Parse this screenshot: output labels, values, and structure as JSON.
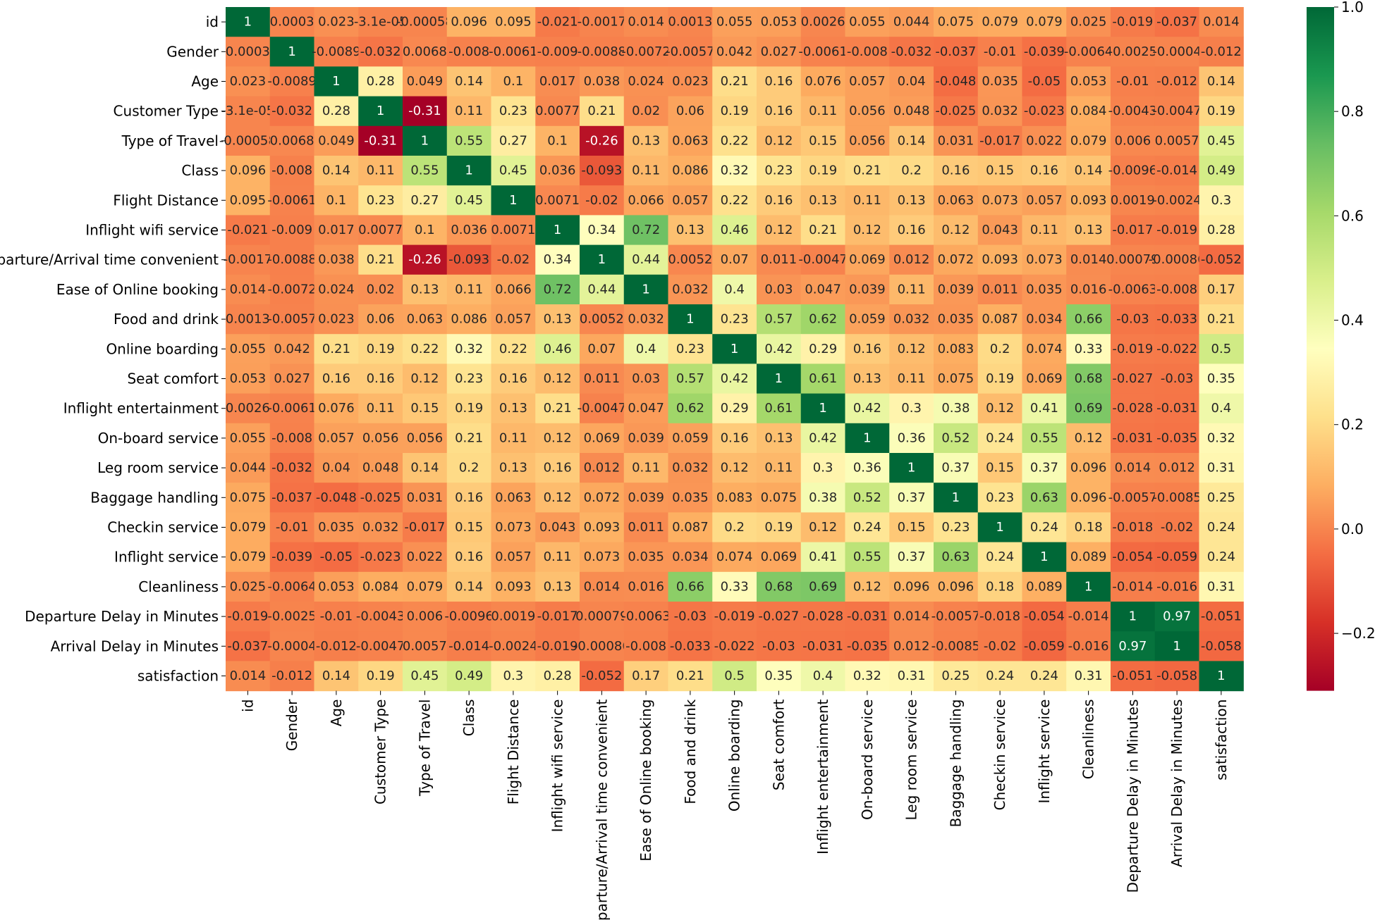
{
  "chart_data": {
    "type": "heatmap",
    "title": "",
    "labels": [
      "id",
      "Gender",
      "Age",
      "Customer Type",
      "Type of Travel",
      "Class",
      "Flight Distance",
      "Inflight wifi service",
      "Departure/Arrival time convenient",
      "Ease of Online booking",
      "Food and drink",
      "Online boarding",
      "Seat comfort",
      "Inflight entertainment",
      "On-board service",
      "Leg room service",
      "Baggage handling",
      "Checkin service",
      "Inflight service",
      "Cleanliness",
      "Departure Delay in Minutes",
      "Arrival Delay in Minutes",
      "satisfaction"
    ],
    "values": [
      [
        1,
        0.0003,
        0.023,
        -3.1e-05,
        -0.00058,
        0.096,
        0.095,
        -0.021,
        -0.0017,
        0.014,
        0.0013,
        0.055,
        0.053,
        0.0026,
        0.055,
        0.044,
        0.075,
        0.079,
        0.079,
        0.025,
        -0.019,
        -0.037,
        0.014
      ],
      [
        0.0003,
        1,
        -0.0089,
        -0.032,
        0.0068,
        -0.008,
        -0.0061,
        -0.009,
        -0.0088,
        -0.0072,
        -0.0057,
        0.042,
        0.027,
        -0.0061,
        -0.008,
        -0.032,
        -0.037,
        -0.01,
        -0.039,
        -0.0064,
        -0.0025,
        -0.0004,
        -0.012
      ],
      [
        0.023,
        -0.0089,
        1,
        0.28,
        0.049,
        0.14,
        0.1,
        0.017,
        0.038,
        0.024,
        0.023,
        0.21,
        0.16,
        0.076,
        0.057,
        0.04,
        -0.048,
        0.035,
        -0.05,
        0.053,
        -0.01,
        -0.012,
        0.14
      ],
      [
        -3.1e-05,
        -0.032,
        0.28,
        1,
        -0.31,
        0.11,
        0.23,
        0.0077,
        0.21,
        0.02,
        0.06,
        0.19,
        0.16,
        0.11,
        0.056,
        0.048,
        -0.025,
        0.032,
        -0.023,
        0.084,
        -0.0043,
        -0.0047,
        0.19
      ],
      [
        -0.00058,
        0.0068,
        0.049,
        -0.31,
        1,
        0.55,
        0.27,
        0.1,
        -0.26,
        0.13,
        0.063,
        0.22,
        0.12,
        0.15,
        0.056,
        0.14,
        0.031,
        -0.017,
        0.022,
        0.079,
        0.006,
        0.0057,
        0.45
      ],
      [
        0.096,
        -0.008,
        0.14,
        0.11,
        0.55,
        1,
        0.45,
        0.036,
        -0.093,
        0.11,
        0.086,
        0.32,
        0.23,
        0.19,
        0.21,
        0.2,
        0.16,
        0.15,
        0.16,
        0.14,
        -0.0096,
        -0.014,
        0.49
      ],
      [
        0.095,
        -0.0061,
        0.1,
        0.23,
        0.27,
        0.45,
        1,
        0.0071,
        -0.02,
        0.066,
        0.057,
        0.22,
        0.16,
        0.13,
        0.11,
        0.13,
        0.063,
        0.073,
        0.057,
        0.093,
        0.0019,
        -0.0024,
        0.3
      ],
      [
        -0.021,
        -0.009,
        0.017,
        0.0077,
        0.1,
        0.036,
        0.0071,
        1,
        0.34,
        0.72,
        0.13,
        0.46,
        0.12,
        0.21,
        0.12,
        0.16,
        0.12,
        0.043,
        0.11,
        0.13,
        -0.017,
        -0.019,
        0.28
      ],
      [
        -0.0017,
        -0.0088,
        0.038,
        0.21,
        -0.26,
        -0.093,
        -0.02,
        0.34,
        1,
        0.44,
        0.0052,
        0.07,
        0.011,
        -0.0047,
        0.069,
        0.012,
        0.072,
        0.093,
        0.073,
        0.014,
        0.00079,
        -0.00086,
        -0.052
      ],
      [
        0.014,
        -0.0072,
        0.024,
        0.02,
        0.13,
        0.11,
        0.066,
        0.72,
        0.44,
        1,
        0.032,
        0.4,
        0.03,
        0.047,
        0.039,
        0.11,
        0.039,
        0.011,
        0.035,
        0.016,
        -0.0063,
        -0.008,
        0.17
      ],
      [
        0.0013,
        -0.0057,
        0.023,
        0.06,
        0.063,
        0.086,
        0.057,
        0.13,
        0.0052,
        0.032,
        1,
        0.23,
        0.57,
        0.62,
        0.059,
        0.032,
        0.035,
        0.087,
        0.034,
        0.66,
        -0.03,
        -0.033,
        0.21
      ],
      [
        0.055,
        0.042,
        0.21,
        0.19,
        0.22,
        0.32,
        0.22,
        0.46,
        0.07,
        0.4,
        0.23,
        1,
        0.42,
        0.29,
        0.16,
        0.12,
        0.083,
        0.2,
        0.074,
        0.33,
        -0.019,
        -0.022,
        0.5
      ],
      [
        0.053,
        0.027,
        0.16,
        0.16,
        0.12,
        0.23,
        0.16,
        0.12,
        0.011,
        0.03,
        0.57,
        0.42,
        1,
        0.61,
        0.13,
        0.11,
        0.075,
        0.19,
        0.069,
        0.68,
        -0.027,
        -0.03,
        0.35
      ],
      [
        0.0026,
        -0.0061,
        0.076,
        0.11,
        0.15,
        0.19,
        0.13,
        0.21,
        -0.0047,
        0.047,
        0.62,
        0.29,
        0.61,
        1,
        0.42,
        0.3,
        0.38,
        0.12,
        0.41,
        0.69,
        -0.028,
        -0.031,
        0.4
      ],
      [
        0.055,
        -0.008,
        0.057,
        0.056,
        0.056,
        0.21,
        0.11,
        0.12,
        0.069,
        0.039,
        0.059,
        0.16,
        0.13,
        0.42,
        1,
        0.36,
        0.52,
        0.24,
        0.55,
        0.12,
        -0.031,
        -0.035,
        0.32
      ],
      [
        0.044,
        -0.032,
        0.04,
        0.048,
        0.14,
        0.2,
        0.13,
        0.16,
        0.012,
        0.11,
        0.032,
        0.12,
        0.11,
        0.3,
        0.36,
        1,
        0.37,
        0.15,
        0.37,
        0.096,
        0.014,
        0.012,
        0.31
      ],
      [
        0.075,
        -0.037,
        -0.048,
        -0.025,
        0.031,
        0.16,
        0.063,
        0.12,
        0.072,
        0.039,
        0.035,
        0.083,
        0.075,
        0.38,
        0.52,
        0.37,
        1,
        0.23,
        0.63,
        0.096,
        -0.0057,
        -0.0085,
        0.25
      ],
      [
        0.079,
        -0.01,
        0.035,
        0.032,
        -0.017,
        0.15,
        0.073,
        0.043,
        0.093,
        0.011,
        0.087,
        0.2,
        0.19,
        0.12,
        0.24,
        0.15,
        0.23,
        1,
        0.24,
        0.18,
        -0.018,
        -0.02,
        0.24
      ],
      [
        0.079,
        -0.039,
        -0.05,
        -0.023,
        0.022,
        0.16,
        0.057,
        0.11,
        0.073,
        0.035,
        0.034,
        0.074,
        0.069,
        0.41,
        0.55,
        0.37,
        0.63,
        0.24,
        1,
        0.089,
        -0.054,
        -0.059,
        0.24
      ],
      [
        0.025,
        -0.0064,
        0.053,
        0.084,
        0.079,
        0.14,
        0.093,
        0.13,
        0.014,
        0.016,
        0.66,
        0.33,
        0.68,
        0.69,
        0.12,
        0.096,
        0.096,
        0.18,
        0.089,
        1,
        -0.014,
        -0.016,
        0.31
      ],
      [
        -0.019,
        -0.0025,
        -0.01,
        -0.0043,
        0.006,
        -0.0096,
        0.0019,
        -0.017,
        0.00079,
        -0.0063,
        -0.03,
        -0.019,
        -0.027,
        -0.028,
        -0.031,
        0.014,
        -0.0057,
        -0.018,
        -0.054,
        -0.014,
        1,
        0.97,
        -0.051
      ],
      [
        -0.037,
        -0.0004,
        -0.012,
        -0.0047,
        0.0057,
        -0.014,
        -0.0024,
        -0.019,
        -0.00086,
        -0.008,
        -0.033,
        -0.022,
        -0.03,
        -0.031,
        -0.035,
        0.012,
        -0.0085,
        -0.02,
        -0.059,
        -0.016,
        0.97,
        1,
        -0.058
      ],
      [
        0.014,
        -0.012,
        0.14,
        0.19,
        0.45,
        0.49,
        0.3,
        0.28,
        -0.052,
        0.17,
        0.21,
        0.5,
        0.35,
        0.4,
        0.32,
        0.31,
        0.25,
        0.24,
        0.24,
        0.31,
        -0.051,
        -0.058,
        1
      ]
    ],
    "cell_labels": [
      [
        "1",
        "0.0003",
        "0.023",
        "-3.1e-05",
        "-0.00058",
        "0.096",
        "0.095",
        "-0.021",
        "-0.0017",
        "0.014",
        "0.0013",
        "0.055",
        "0.053",
        "0.0026",
        "0.055",
        "0.044",
        "0.075",
        "0.079",
        "0.079",
        "0.025",
        "-0.019",
        "-0.037",
        "0.014"
      ],
      [
        "0.0003",
        "1",
        "-0.0089",
        "-0.032",
        "0.0068",
        "-0.008",
        "-0.0061",
        "-0.009",
        "-0.0088",
        "-0.0072",
        "-0.0057",
        "0.042",
        "0.027",
        "-0.0061",
        "-0.008",
        "-0.032",
        "-0.037",
        "-0.01",
        "-0.039",
        "-0.0064",
        "-0.0025",
        "-0.0004",
        "-0.012"
      ],
      [
        "0.023",
        "-0.0089",
        "1",
        "0.28",
        "0.049",
        "0.14",
        "0.1",
        "0.017",
        "0.038",
        "0.024",
        "0.023",
        "0.21",
        "0.16",
        "0.076",
        "0.057",
        "0.04",
        "-0.048",
        "0.035",
        "-0.05",
        "0.053",
        "-0.01",
        "-0.012",
        "0.14"
      ],
      [
        "-3.1e-05",
        "-0.032",
        "0.28",
        "1",
        "-0.31",
        "0.11",
        "0.23",
        "0.0077",
        "0.21",
        "0.02",
        "0.06",
        "0.19",
        "0.16",
        "0.11",
        "0.056",
        "0.048",
        "-0.025",
        "0.032",
        "-0.023",
        "0.084",
        "-0.0043",
        "-0.0047",
        "0.19"
      ],
      [
        "-0.00058",
        "0.0068",
        "0.049",
        "-0.31",
        "1",
        "0.55",
        "0.27",
        "0.1",
        "-0.26",
        "0.13",
        "0.063",
        "0.22",
        "0.12",
        "0.15",
        "0.056",
        "0.14",
        "0.031",
        "-0.017",
        "0.022",
        "0.079",
        "0.006",
        "0.0057",
        "0.45"
      ],
      [
        "0.096",
        "-0.008",
        "0.14",
        "0.11",
        "0.55",
        "1",
        "0.45",
        "0.036",
        "-0.093",
        "0.11",
        "0.086",
        "0.32",
        "0.23",
        "0.19",
        "0.21",
        "0.2",
        "0.16",
        "0.15",
        "0.16",
        "0.14",
        "-0.0096",
        "-0.014",
        "0.49"
      ],
      [
        "0.095",
        "-0.0061",
        "0.1",
        "0.23",
        "0.27",
        "0.45",
        "1",
        "0.0071",
        "-0.02",
        "0.066",
        "0.057",
        "0.22",
        "0.16",
        "0.13",
        "0.11",
        "0.13",
        "0.063",
        "0.073",
        "0.057",
        "0.093",
        "0.0019",
        "-0.0024",
        "0.3"
      ],
      [
        "-0.021",
        "-0.009",
        "0.017",
        "0.0077",
        "0.1",
        "0.036",
        "0.0071",
        "1",
        "0.34",
        "0.72",
        "0.13",
        "0.46",
        "0.12",
        "0.21",
        "0.12",
        "0.16",
        "0.12",
        "0.043",
        "0.11",
        "0.13",
        "-0.017",
        "-0.019",
        "0.28"
      ],
      [
        "-0.0017",
        "-0.0088",
        "0.038",
        "0.21",
        "-0.26",
        "-0.093",
        "-0.02",
        "0.34",
        "1",
        "0.44",
        "0.0052",
        "0.07",
        "0.011",
        "-0.0047",
        "0.069",
        "0.012",
        "0.072",
        "0.093",
        "0.073",
        "0.014",
        "0.00079",
        "-0.00086",
        "-0.052"
      ],
      [
        "0.014",
        "-0.0072",
        "0.024",
        "0.02",
        "0.13",
        "0.11",
        "0.066",
        "0.72",
        "0.44",
        "1",
        "0.032",
        "0.4",
        "0.03",
        "0.047",
        "0.039",
        "0.11",
        "0.039",
        "0.011",
        "0.035",
        "0.016",
        "-0.0063",
        "-0.008",
        "0.17"
      ],
      [
        "0.0013",
        "-0.0057",
        "0.023",
        "0.06",
        "0.063",
        "0.086",
        "0.057",
        "0.13",
        "0.0052",
        "0.032",
        "1",
        "0.23",
        "0.57",
        "0.62",
        "0.059",
        "0.032",
        "0.035",
        "0.087",
        "0.034",
        "0.66",
        "-0.03",
        "-0.033",
        "0.21"
      ],
      [
        "0.055",
        "0.042",
        "0.21",
        "0.19",
        "0.22",
        "0.32",
        "0.22",
        "0.46",
        "0.07",
        "0.4",
        "0.23",
        "1",
        "0.42",
        "0.29",
        "0.16",
        "0.12",
        "0.083",
        "0.2",
        "0.074",
        "0.33",
        "-0.019",
        "-0.022",
        "0.5"
      ],
      [
        "0.053",
        "0.027",
        "0.16",
        "0.16",
        "0.12",
        "0.23",
        "0.16",
        "0.12",
        "0.011",
        "0.03",
        "0.57",
        "0.42",
        "1",
        "0.61",
        "0.13",
        "0.11",
        "0.075",
        "0.19",
        "0.069",
        "0.68",
        "-0.027",
        "-0.03",
        "0.35"
      ],
      [
        "0.0026",
        "-0.0061",
        "0.076",
        "0.11",
        "0.15",
        "0.19",
        "0.13",
        "0.21",
        "-0.0047",
        "0.047",
        "0.62",
        "0.29",
        "0.61",
        "1",
        "0.42",
        "0.3",
        "0.38",
        "0.12",
        "0.41",
        "0.69",
        "-0.028",
        "-0.031",
        "0.4"
      ],
      [
        "0.055",
        "-0.008",
        "0.057",
        "0.056",
        "0.056",
        "0.21",
        "0.11",
        "0.12",
        "0.069",
        "0.039",
        "0.059",
        "0.16",
        "0.13",
        "0.42",
        "1",
        "0.36",
        "0.52",
        "0.24",
        "0.55",
        "0.12",
        "-0.031",
        "-0.035",
        "0.32"
      ],
      [
        "0.044",
        "-0.032",
        "0.04",
        "0.048",
        "0.14",
        "0.2",
        "0.13",
        "0.16",
        "0.012",
        "0.11",
        "0.032",
        "0.12",
        "0.11",
        "0.3",
        "0.36",
        "1",
        "0.37",
        "0.15",
        "0.37",
        "0.096",
        "0.014",
        "0.012",
        "0.31"
      ],
      [
        "0.075",
        "-0.037",
        "-0.048",
        "-0.025",
        "0.031",
        "0.16",
        "0.063",
        "0.12",
        "0.072",
        "0.039",
        "0.035",
        "0.083",
        "0.075",
        "0.38",
        "0.52",
        "0.37",
        "1",
        "0.23",
        "0.63",
        "0.096",
        "-0.0057",
        "-0.0085",
        "0.25"
      ],
      [
        "0.079",
        "-0.01",
        "0.035",
        "0.032",
        "-0.017",
        "0.15",
        "0.073",
        "0.043",
        "0.093",
        "0.011",
        "0.087",
        "0.2",
        "0.19",
        "0.12",
        "0.24",
        "0.15",
        "0.23",
        "1",
        "0.24",
        "0.18",
        "-0.018",
        "-0.02",
        "0.24"
      ],
      [
        "0.079",
        "-0.039",
        "-0.05",
        "-0.023",
        "0.022",
        "0.16",
        "0.057",
        "0.11",
        "0.073",
        "0.035",
        "0.034",
        "0.074",
        "0.069",
        "0.41",
        "0.55",
        "0.37",
        "0.63",
        "0.24",
        "1",
        "0.089",
        "-0.054",
        "-0.059",
        "0.24"
      ],
      [
        "0.025",
        "-0.0064",
        "0.053",
        "0.084",
        "0.079",
        "0.14",
        "0.093",
        "0.13",
        "0.014",
        "0.016",
        "0.66",
        "0.33",
        "0.68",
        "0.69",
        "0.12",
        "0.096",
        "0.096",
        "0.18",
        "0.089",
        "1",
        "-0.014",
        "-0.016",
        "0.31"
      ],
      [
        "-0.019",
        "-0.0025",
        "-0.01",
        "-0.0043",
        "0.006",
        "-0.0096",
        "0.0019",
        "-0.017",
        "0.00079",
        "-0.0063",
        "-0.03",
        "-0.019",
        "-0.027",
        "-0.028",
        "-0.031",
        "0.014",
        "-0.0057",
        "-0.018",
        "-0.054",
        "-0.014",
        "1",
        "0.97",
        "-0.051"
      ],
      [
        "-0.037",
        "-0.0004",
        "-0.012",
        "-0.0047",
        "0.0057",
        "-0.014",
        "-0.0024",
        "-0.019",
        "-0.00086",
        "-0.008",
        "-0.033",
        "-0.022",
        "-0.03",
        "-0.031",
        "-0.035",
        "0.012",
        "-0.0085",
        "-0.02",
        "-0.059",
        "-0.016",
        "0.97",
        "1",
        "-0.058"
      ],
      [
        "0.014",
        "-0.012",
        "0.14",
        "0.19",
        "0.45",
        "0.49",
        "0.3",
        "0.28",
        "-0.052",
        "0.17",
        "0.21",
        "0.5",
        "0.35",
        "0.4",
        "0.32",
        "0.31",
        "0.25",
        "0.24",
        "0.24",
        "0.31",
        "-0.051",
        "-0.058",
        "1"
      ]
    ],
    "colormap": "RdYlGn",
    "colormap_stops": [
      "#a50026",
      "#d73027",
      "#f46d43",
      "#fdae61",
      "#fee08b",
      "#ffffbf",
      "#d9ef8b",
      "#a6d96a",
      "#66bd63",
      "#1a9850",
      "#006837"
    ],
    "vmin": -0.31,
    "vmax": 1.0,
    "colorbar": {
      "ticks": [
        -0.2,
        0.0,
        0.2,
        0.4,
        0.6,
        0.8,
        1.0
      ],
      "tick_labels": [
        "−0.2",
        "0.0",
        "0.2",
        "0.4",
        "0.6",
        "0.8",
        "1.0"
      ]
    },
    "annotations": true,
    "xlabel": "",
    "ylabel": "",
    "grid": false,
    "legend": "colorbar-right"
  }
}
